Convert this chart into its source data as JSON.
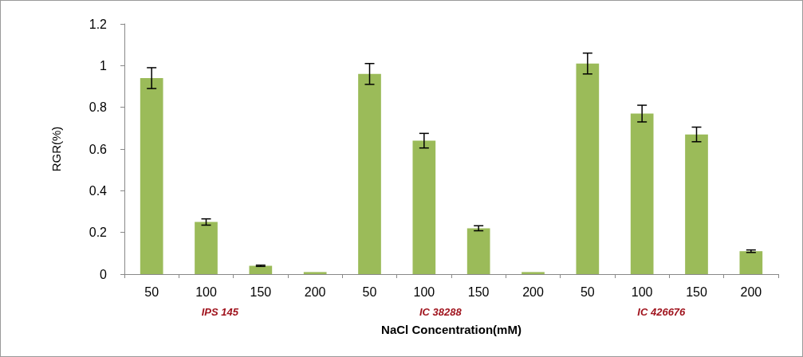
{
  "chart_data": {
    "type": "bar",
    "xlabel": "NaCl Concentration(mM)",
    "ylabel": "RGR(%)",
    "categories": [
      "50",
      "100",
      "150",
      "200",
      "50",
      "100",
      "150",
      "200",
      "50",
      "100",
      "150",
      "200"
    ],
    "values": [
      0.94,
      0.25,
      0.04,
      0.01,
      0.96,
      0.64,
      0.22,
      0.01,
      1.01,
      0.77,
      0.67,
      0.11
    ],
    "errors": [
      0.05,
      0.015,
      0.003,
      null,
      0.05,
      0.035,
      0.012,
      null,
      0.05,
      0.04,
      0.035,
      0.006
    ],
    "color": "#9bbb59",
    "ylim": [
      0,
      1.2
    ],
    "yticks": [
      0,
      0.2,
      0.4,
      0.6,
      0.8,
      1,
      1.2
    ],
    "grid": false,
    "annotations": [
      "IPS 145",
      "IC 38288",
      "IC 426676"
    ]
  }
}
